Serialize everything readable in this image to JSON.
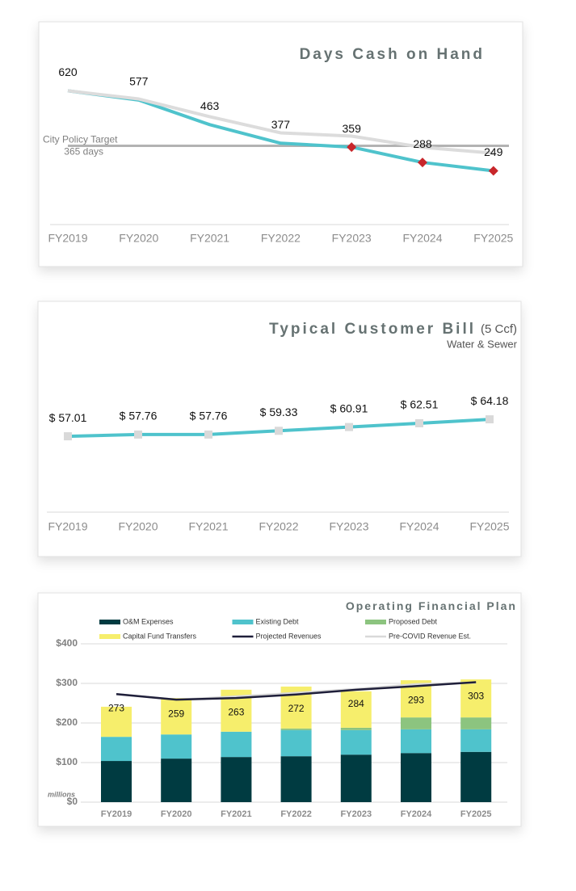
{
  "chart_data": [
    {
      "type": "line",
      "title": "Days Cash on Hand",
      "categories": [
        "FY2019",
        "FY2020",
        "FY2021",
        "FY2022",
        "FY2023",
        "FY2024",
        "FY2025"
      ],
      "series": [
        {
          "color": "#dcdcdc",
          "values": [
            620,
            582,
            500,
            425,
            410,
            358,
            331
          ]
        },
        {
          "color": "#4fc3cc",
          "values": [
            620,
            577,
            463,
            377,
            359,
            288,
            249
          ],
          "data_labels": true,
          "marker_colors": [
            null,
            null,
            null,
            null,
            "#c8262b",
            "#c8262b",
            "#c8262b"
          ]
        }
      ],
      "target": {
        "value": 365,
        "label": "City Policy Target",
        "sublabel": "365 days",
        "color": "#b3b3b3"
      },
      "ylim": [
        0,
        700
      ]
    },
    {
      "type": "line",
      "title": "Typical Customer Bill",
      "title_note": "(5 Ccf)",
      "subtitle": "Water & Sewer",
      "categories": [
        "FY2019",
        "FY2020",
        "FY2021",
        "FY2022",
        "FY2023",
        "FY2024",
        "FY2025"
      ],
      "series": [
        {
          "color": "#4fc3cc",
          "marker_color": "#d9d9d9",
          "data_labels": true,
          "values": [
            57.01,
            57.76,
            57.76,
            59.33,
            60.91,
            62.51,
            64.18
          ],
          "value_labels": [
            "$ 57.01",
            "$ 57.76",
            "$ 57.76",
            "$ 59.33",
            "$ 60.91",
            "$ 62.51",
            "$ 64.18"
          ]
        }
      ],
      "ylim": [
        25,
        85
      ]
    },
    {
      "type": "bar",
      "stacked": true,
      "title": "Operating Financial Plan",
      "y_unit_note": "millions",
      "categories": [
        "FY2019",
        "FY2020",
        "FY2021",
        "FY2022",
        "FY2023",
        "FY2024",
        "FY2025"
      ],
      "series": [
        {
          "name": "O&M Expenses",
          "type": "bar",
          "color": "#003b41",
          "values": [
            104,
            110,
            114,
            116,
            120,
            124,
            127
          ]
        },
        {
          "name": "Existing Debt",
          "type": "bar",
          "color": "#4fc3cc",
          "values": [
            61,
            61,
            64,
            66,
            62,
            60,
            57
          ]
        },
        {
          "name": "Proposed Debt",
          "type": "bar",
          "color": "#8cc47f",
          "values": [
            0,
            0,
            0,
            4,
            6,
            30,
            30
          ]
        },
        {
          "name": "Capital Fund Transfers",
          "type": "bar",
          "color": "#f6ee6c",
          "values": [
            76,
            92,
            106,
            106,
            92,
            94,
            96
          ]
        },
        {
          "name": "Projected Revenues",
          "type": "line",
          "color": "#1f1f3a",
          "data_labels": true,
          "values": [
            273,
            259,
            263,
            272,
            284,
            293,
            303
          ]
        },
        {
          "name": "Pre-COVID Revenue Est.",
          "type": "line",
          "color": "#d9d9d9",
          "values": [
            273,
            259,
            267,
            276,
            286,
            298,
            302
          ]
        }
      ],
      "ylim": [
        0,
        400
      ],
      "yticks": [
        {
          "value": 0,
          "label": "$0"
        },
        {
          "value": 100,
          "label": "$100"
        },
        {
          "value": 200,
          "label": "$200"
        },
        {
          "value": 300,
          "label": "$300"
        },
        {
          "value": 400,
          "label": "$400"
        }
      ],
      "grid": true,
      "legend": "top"
    }
  ]
}
